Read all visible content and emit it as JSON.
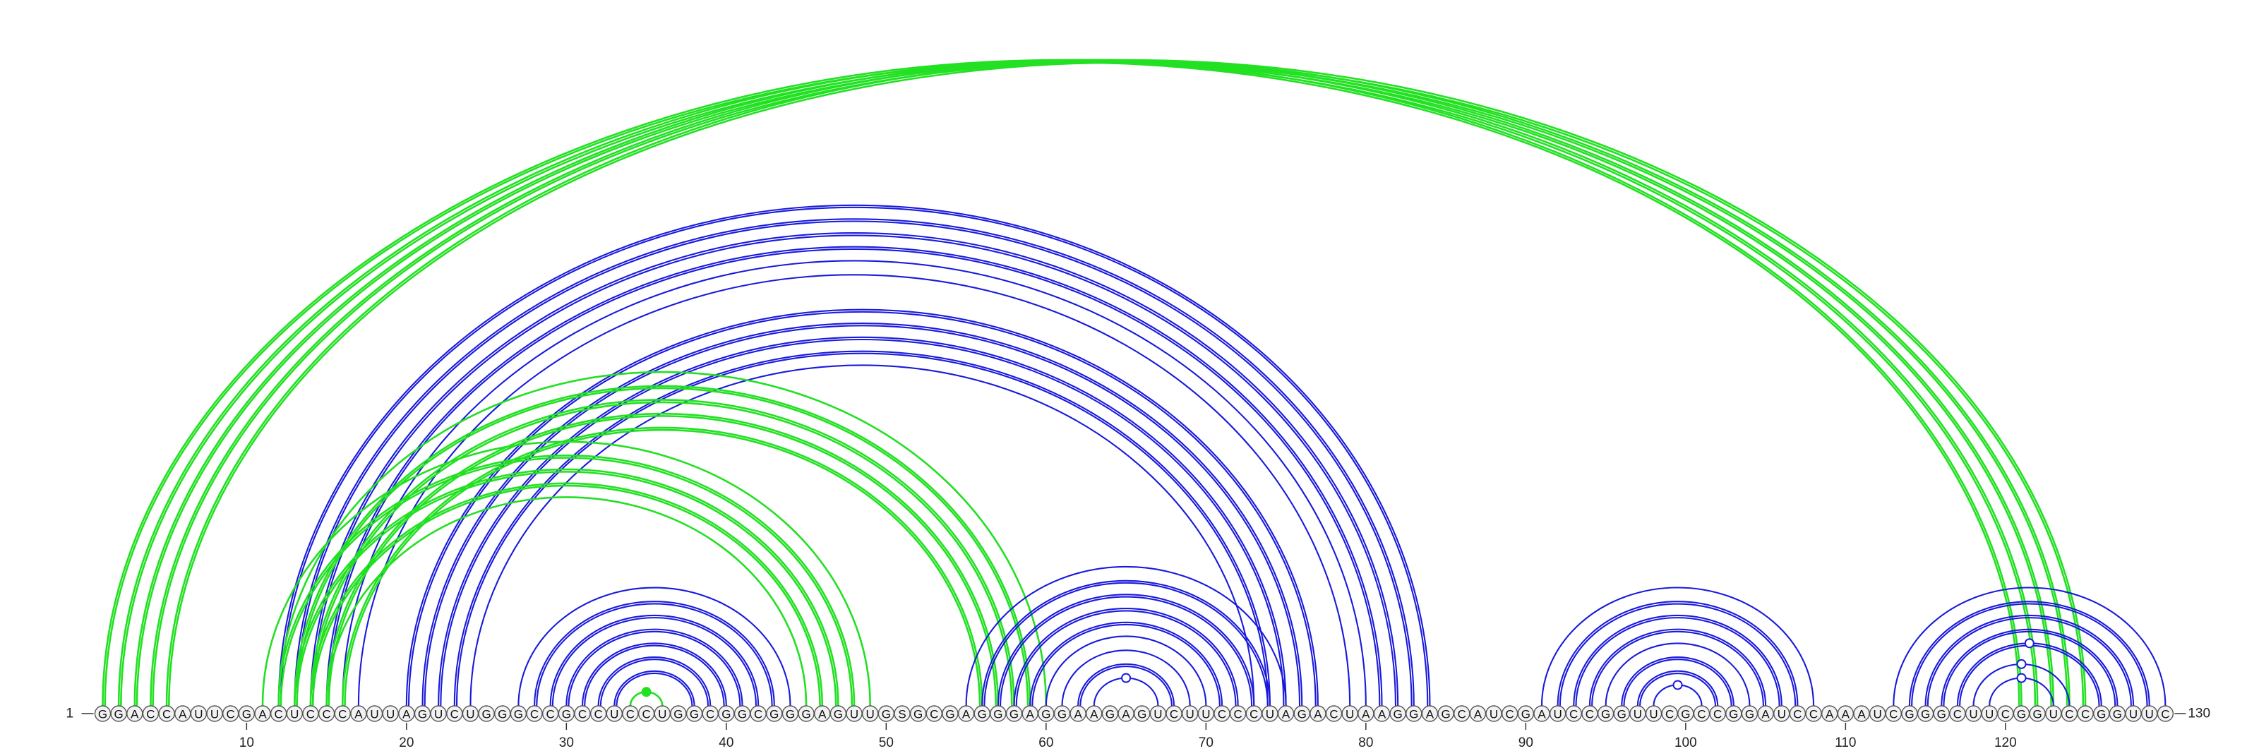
{
  "sequence": "GGACCAUUCGACUCCCAUUAGUCUGGGCCGCCUCCUGGCGGCGGGAGUUGSGCGAGGGAGGAAGAGUCUUCCCUAGACUAAGGAGCAUCGAUCCGGUUCGCCGGAUCCAAAUCGGGCUUCGGUCCGGUUC",
  "start_label": "1",
  "end_label": "130",
  "ticks": [
    {
      "pos": 10,
      "label": "10"
    },
    {
      "pos": 20,
      "label": "20"
    },
    {
      "pos": 30,
      "label": "30"
    },
    {
      "pos": 40,
      "label": "40"
    },
    {
      "pos": 50,
      "label": "50"
    },
    {
      "pos": 60,
      "label": "60"
    },
    {
      "pos": 70,
      "label": "70"
    },
    {
      "pos": 80,
      "label": "80"
    },
    {
      "pos": 90,
      "label": "90"
    },
    {
      "pos": 100,
      "label": "100"
    },
    {
      "pos": 110,
      "label": "110"
    },
    {
      "pos": 120,
      "label": "120"
    }
  ],
  "colors": {
    "blue": "#1a1adc",
    "green": "#22e022"
  },
  "arcs": [
    {
      "i": 1,
      "j": 121,
      "color": "green",
      "double": true
    },
    {
      "i": 2,
      "j": 122,
      "color": "green",
      "double": true
    },
    {
      "i": 3,
      "j": 123,
      "color": "green",
      "double": true
    },
    {
      "i": 4,
      "j": 124,
      "color": "green",
      "double": true
    },
    {
      "i": 5,
      "j": 125,
      "color": "green",
      "double": true
    },
    {
      "i": 12,
      "j": 84,
      "color": "blue",
      "double": true
    },
    {
      "i": 13,
      "j": 83,
      "color": "blue",
      "double": true
    },
    {
      "i": 14,
      "j": 82,
      "color": "blue",
      "double": true
    },
    {
      "i": 15,
      "j": 81,
      "color": "blue",
      "double": true
    },
    {
      "i": 16,
      "j": 80,
      "color": "blue",
      "double": false
    },
    {
      "i": 17,
      "j": 79,
      "color": "blue",
      "double": false
    },
    {
      "i": 20,
      "j": 77,
      "color": "blue",
      "double": true
    },
    {
      "i": 21,
      "j": 76,
      "color": "blue",
      "double": true
    },
    {
      "i": 22,
      "j": 75,
      "color": "blue",
      "double": true
    },
    {
      "i": 23,
      "j": 74,
      "color": "blue",
      "double": true
    },
    {
      "i": 24,
      "j": 73,
      "color": "blue",
      "double": false
    },
    {
      "i": 11,
      "j": 49,
      "color": "green",
      "double": false
    },
    {
      "i": 12,
      "j": 48,
      "color": "green",
      "double": true
    },
    {
      "i": 13,
      "j": 47,
      "color": "green",
      "double": true
    },
    {
      "i": 14,
      "j": 46,
      "color": "green",
      "double": true
    },
    {
      "i": 15,
      "j": 45,
      "color": "green",
      "double": false
    },
    {
      "i": 12,
      "j": 60,
      "color": "green",
      "double": false
    },
    {
      "i": 13,
      "j": 59,
      "color": "green",
      "double": true
    },
    {
      "i": 14,
      "j": 58,
      "color": "green",
      "double": true
    },
    {
      "i": 15,
      "j": 57,
      "color": "green",
      "double": true
    },
    {
      "i": 16,
      "j": 56,
      "color": "green",
      "double": true
    },
    {
      "i": 27,
      "j": 44,
      "color": "blue",
      "double": false
    },
    {
      "i": 28,
      "j": 43,
      "color": "blue",
      "double": true
    },
    {
      "i": 29,
      "j": 42,
      "color": "blue",
      "double": true
    },
    {
      "i": 30,
      "j": 41,
      "color": "blue",
      "double": true
    },
    {
      "i": 31,
      "j": 40,
      "color": "blue",
      "double": true
    },
    {
      "i": 32,
      "j": 39,
      "color": "blue",
      "double": true
    },
    {
      "i": 33,
      "j": 38,
      "color": "blue",
      "double": true
    },
    {
      "i": 34,
      "j": 36,
      "color": "green",
      "double": false
    },
    {
      "i": 55,
      "j": 75,
      "color": "blue",
      "double": false
    },
    {
      "i": 56,
      "j": 74,
      "color": "blue",
      "double": true
    },
    {
      "i": 57,
      "j": 73,
      "color": "blue",
      "double": true
    },
    {
      "i": 58,
      "j": 72,
      "color": "blue",
      "double": true
    },
    {
      "i": 59,
      "j": 71,
      "color": "blue",
      "double": true
    },
    {
      "i": 60,
      "j": 70,
      "color": "blue",
      "double": false
    },
    {
      "i": 61,
      "j": 69,
      "color": "blue",
      "double": false
    },
    {
      "i": 62,
      "j": 68,
      "color": "blue",
      "double": true
    },
    {
      "i": 63,
      "j": 67,
      "color": "blue",
      "double": false
    },
    {
      "i": 91,
      "j": 108,
      "color": "blue",
      "double": false
    },
    {
      "i": 92,
      "j": 107,
      "color": "blue",
      "double": true
    },
    {
      "i": 93,
      "j": 106,
      "color": "blue",
      "double": true
    },
    {
      "i": 94,
      "j": 105,
      "color": "blue",
      "double": true
    },
    {
      "i": 95,
      "j": 104,
      "color": "blue",
      "double": false
    },
    {
      "i": 96,
      "j": 103,
      "color": "blue",
      "double": true
    },
    {
      "i": 97,
      "j": 102,
      "color": "blue",
      "double": true
    },
    {
      "i": 98,
      "j": 101,
      "color": "blue",
      "double": false
    },
    {
      "i": 113,
      "j": 130,
      "color": "blue",
      "double": false
    },
    {
      "i": 114,
      "j": 129,
      "color": "blue",
      "double": true
    },
    {
      "i": 115,
      "j": 128,
      "color": "blue",
      "double": true
    },
    {
      "i": 116,
      "j": 127,
      "color": "blue",
      "double": true
    },
    {
      "i": 117,
      "j": 126,
      "color": "blue",
      "double": true
    },
    {
      "i": 118,
      "j": 124,
      "color": "blue",
      "double": false
    },
    {
      "i": 119,
      "j": 123,
      "color": "blue",
      "double": false
    }
  ],
  "markers": [
    {
      "i": 34,
      "j": 36,
      "color": "green",
      "filled": true
    },
    {
      "i": 63,
      "j": 67,
      "color": "blue",
      "filled": false
    },
    {
      "i": 98,
      "j": 101,
      "color": "blue",
      "filled": false
    },
    {
      "i": 118,
      "j": 124,
      "color": "blue",
      "filled": false
    },
    {
      "i": 119,
      "j": 123,
      "color": "blue",
      "filled": false
    },
    {
      "i": 117,
      "j": 126,
      "color": "blue",
      "filled": false
    }
  ]
}
